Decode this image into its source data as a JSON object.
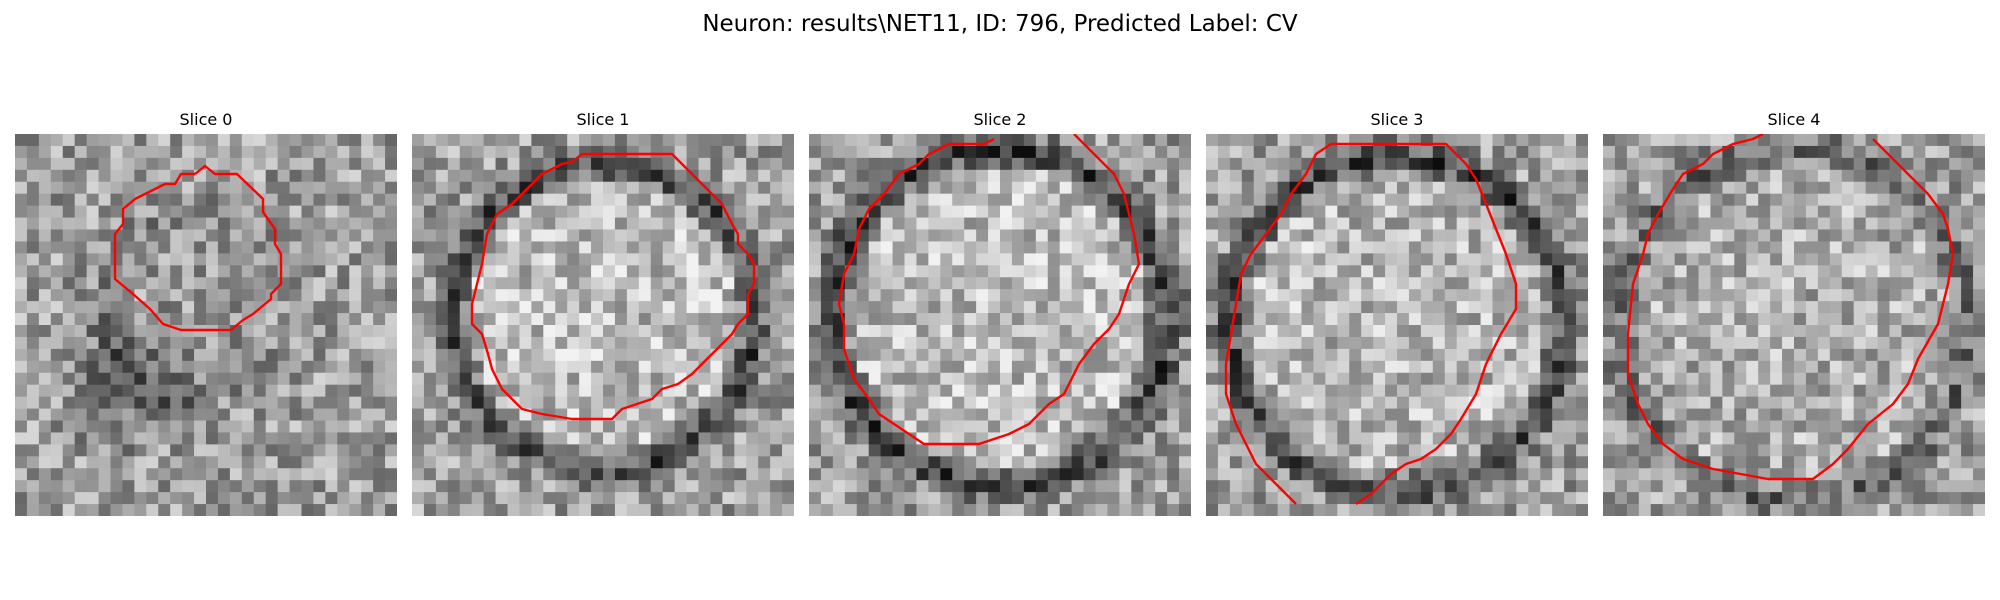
{
  "figure": {
    "title": "Neuron: results\\NET11, ID: 796, Predicted Label: CV"
  },
  "panels": [
    {
      "title": "Slice 0",
      "contour_color": "#ff0000"
    },
    {
      "title": "Slice 1",
      "contour_color": "#ff0000"
    },
    {
      "title": "Slice 2",
      "contour_color": "#ff0000"
    },
    {
      "title": "Slice 3",
      "contour_color": "#ff0000"
    },
    {
      "title": "Slice 4",
      "contour_color": "#ff0000"
    }
  ],
  "colormap": "gray"
}
